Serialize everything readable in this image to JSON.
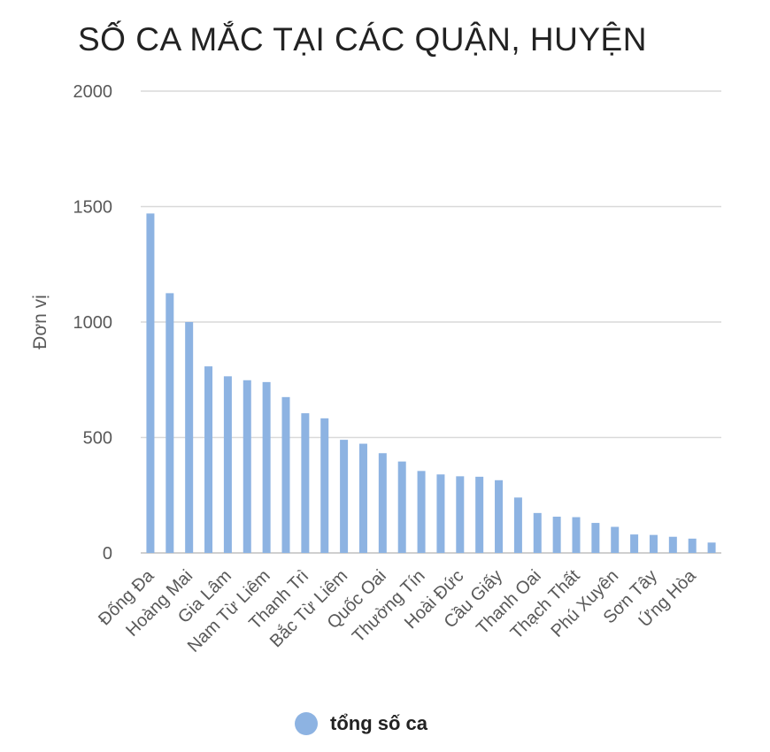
{
  "chart_data": {
    "type": "bar",
    "title": "SỐ CA MẮC TẠI CÁC QUẬN, HUYỆN",
    "ylabel": "Đơn vị",
    "xlabel": "",
    "ylim": [
      0,
      2000
    ],
    "yticks": [
      0,
      500,
      1000,
      1500,
      2000
    ],
    "grid": true,
    "legend_position": "bottom",
    "bar_color": "#8DB3E2",
    "categories": [
      "Đống Đa",
      "",
      "Hoàng Mai",
      "",
      "Gia Lâm",
      "",
      "Nam Từ Liêm",
      "",
      "Thanh Trì",
      "",
      "Bắc Từ Liêm",
      "",
      "Quốc Oai",
      "",
      "Thường Tín",
      "",
      "Hoài Đức",
      "",
      "Cầu Giấy",
      "",
      "Thanh Oai",
      "",
      "Thạch Thất",
      "",
      "Phú Xuyên",
      "",
      "Sơn Tây",
      "",
      "Ứng Hòa",
      ""
    ],
    "series": [
      {
        "name": "tổng số ca",
        "values": [
          1470,
          1125,
          1000,
          808,
          765,
          748,
          740,
          675,
          605,
          583,
          490,
          473,
          432,
          396,
          355,
          340,
          332,
          330,
          315,
          240,
          173,
          157,
          155,
          130,
          113,
          80,
          78,
          70,
          62,
          45
        ]
      }
    ]
  }
}
